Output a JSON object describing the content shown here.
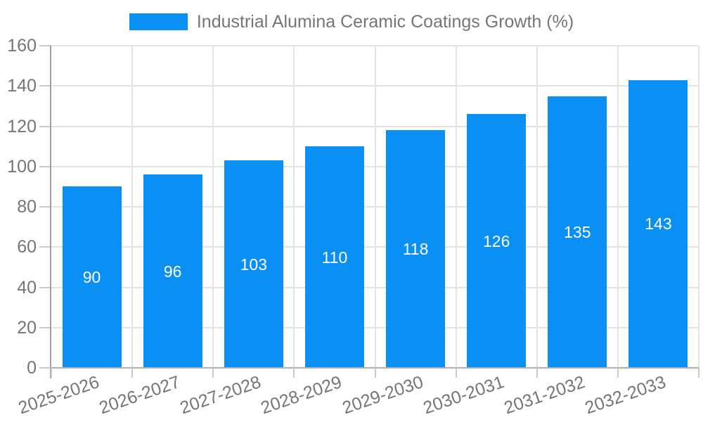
{
  "chart_data": {
    "type": "bar",
    "title": "Industrial Alumina Ceramic Coatings Growth (%)",
    "categories": [
      "2025-2026",
      "2026-2027",
      "2027-2028",
      "2028-2029",
      "2029-2030",
      "2030-2031",
      "2031-2032",
      "2032-2033"
    ],
    "values": [
      90,
      96,
      103,
      110,
      118,
      126,
      135,
      143
    ],
    "ylim": [
      0,
      160
    ],
    "ytick_step": 20,
    "yticks": [
      0,
      20,
      40,
      60,
      80,
      100,
      120,
      140,
      160
    ],
    "grid": true,
    "legend_position": "top",
    "bar_labels_shown": true,
    "colors": {
      "bar": "#0a90f4",
      "bar_label": "#ffffff",
      "axis_text": "#757575",
      "grid_line": "#e3e3e3",
      "axis_line": "#9e9e9e",
      "baseline": "#b0b0b0",
      "tick": "#c9c9c9",
      "background": "#ffffff"
    }
  }
}
